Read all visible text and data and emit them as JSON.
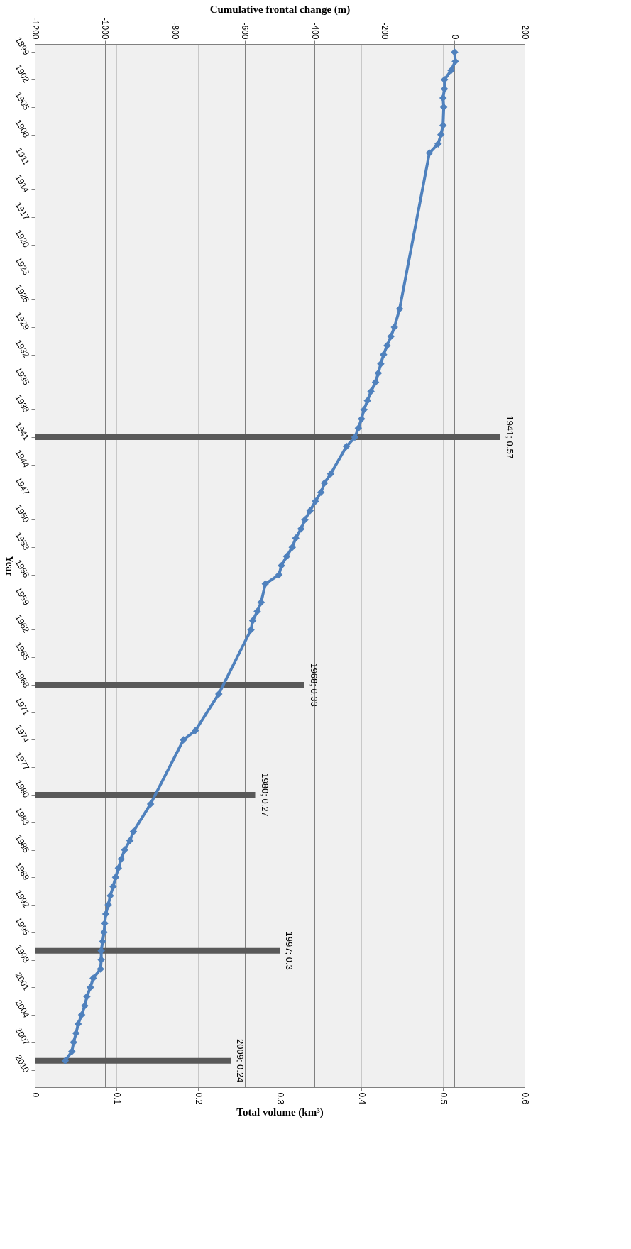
{
  "chart_data": {
    "type": "bar",
    "orientation": "horizontal",
    "xlabel": "Total volume (km³)",
    "x2label": "Cumulative frontal change (m)",
    "ylabel": "Year",
    "xlim": [
      0,
      0.6
    ],
    "xticks": [
      0,
      0.1,
      0.2,
      0.3,
      0.4,
      0.5,
      0.6
    ],
    "x2lim": [
      -1200,
      200
    ],
    "x2ticks": [
      -1200,
      -1000,
      -800,
      -600,
      -400,
      -200,
      0,
      200
    ],
    "ylim": [
      2011.5,
      1898.5
    ],
    "yticks": [
      1899,
      1902,
      1905,
      1908,
      1911,
      1914,
      1917,
      1920,
      1923,
      1926,
      1929,
      1932,
      1935,
      1938,
      1941,
      1944,
      1947,
      1950,
      1953,
      1956,
      1959,
      1962,
      1965,
      1968,
      1971,
      1974,
      1977,
      1980,
      1983,
      1986,
      1989,
      1992,
      1995,
      1998,
      2001,
      2004,
      2007,
      2010
    ],
    "grid": true,
    "marker": "diamond",
    "series": [
      {
        "color": "#595959",
        "x": [
          1941,
          1968,
          1980,
          1997,
          2009
        ],
        "values": [
          0.57,
          0.33,
          0.27,
          0.3,
          0.24
        ],
        "value_labels": [
          "1941; 0.57",
          "1968; 0.33",
          "1980; 0.27",
          "1997; 0.3",
          "2009; 0.24"
        ]
      },
      {
        "type": "line",
        "axis": "x2",
        "color": "#4f81bd",
        "x": [
          1899,
          1900,
          1901,
          1902,
          1903,
          1904,
          1905,
          1907,
          1908,
          1909,
          1910,
          1927,
          1929,
          1930,
          1931,
          1932,
          1933,
          1934,
          1935,
          1936,
          1937,
          1938,
          1939,
          1940,
          1941,
          1942,
          1945,
          1946,
          1947,
          1948,
          1949,
          1950,
          1951,
          1952,
          1953,
          1954,
          1955,
          1956,
          1957,
          1959,
          1960,
          1961,
          1962,
          1969,
          1973,
          1974,
          1981,
          1984,
          1985,
          1986,
          1987,
          1988,
          1989,
          1990,
          1991,
          1992,
          1993,
          1994,
          1995,
          1996,
          1997,
          1998,
          1999,
          2000,
          2001,
          2002,
          2003,
          2004,
          2005,
          2006,
          2007,
          2008,
          2009
        ],
        "values": [
          0,
          2,
          -10,
          -29,
          -29,
          -33,
          -31,
          -33,
          -39,
          -47,
          -72,
          -157,
          -172,
          -182,
          -193,
          -203,
          -211,
          -218,
          -226,
          -239,
          -249,
          -259,
          -266,
          -275,
          -285,
          -309,
          -354,
          -372,
          -382,
          -398,
          -413,
          -428,
          -439,
          -454,
          -464,
          -480,
          -495,
          -502,
          -541,
          -553,
          -564,
          -577,
          -582,
          -674,
          -741,
          -775,
          -869,
          -918,
          -928,
          -943,
          -953,
          -961,
          -969,
          -976,
          -984,
          -990,
          -997,
          -1000,
          -1002,
          -1006,
          -1010,
          -1010,
          -1012,
          -1033,
          -1041,
          -1051,
          -1057,
          -1066,
          -1076,
          -1082,
          -1089,
          -1094,
          -1113
        ]
      }
    ]
  }
}
